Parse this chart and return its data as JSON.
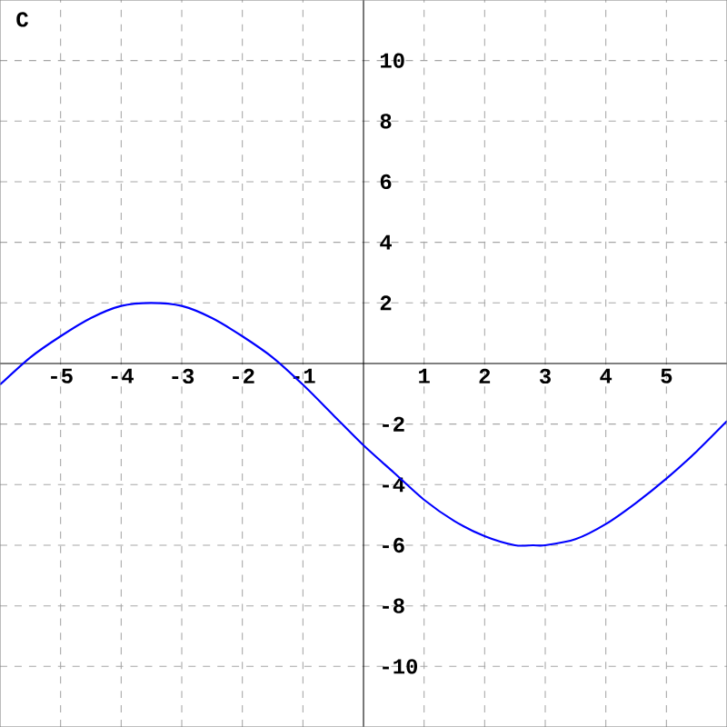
{
  "chart_data": {
    "type": "line",
    "annotations": [
      "C"
    ],
    "xlim": [
      -6,
      6
    ],
    "ylim": [
      -12,
      12
    ],
    "xticks": [
      -5,
      -4,
      -3,
      -2,
      -1,
      1,
      2,
      3,
      4,
      5
    ],
    "yticks": [
      -10,
      -8,
      -6,
      -4,
      -2,
      2,
      4,
      6,
      8,
      10
    ],
    "grid": true,
    "series": [
      {
        "color": "#0000ff",
        "x": [
          -6,
          -5.5,
          -5,
          -4.5,
          -4,
          -3.5,
          -3,
          -2.5,
          -2,
          -1.5,
          -1,
          -0.5,
          0,
          0.5,
          1,
          1.5,
          2,
          2.5,
          2.8,
          3,
          3.5,
          4,
          4.5,
          5,
          5.5,
          6
        ],
        "values": [
          -0.7,
          0.2,
          0.9,
          1.5,
          1.9,
          2,
          1.9,
          1.5,
          0.9,
          0.2,
          -0.7,
          -1.7,
          -2.7,
          -3.6,
          -4.5,
          -5.2,
          -5.7,
          -6,
          -6,
          -6,
          -5.8,
          -5.3,
          -4.6,
          -3.8,
          -2.9,
          -1.9
        ]
      }
    ]
  }
}
